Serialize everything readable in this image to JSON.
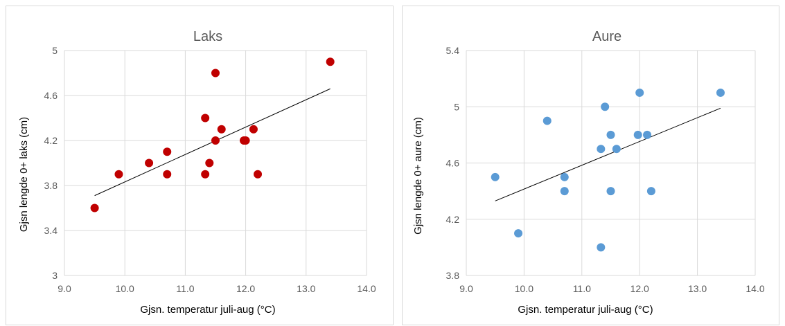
{
  "chart_data": [
    {
      "type": "scatter",
      "title": "Laks",
      "xlabel": "Gjsn. temperatur juli-aug (°C)",
      "ylabel": "Gjsn lengde 0+ laks (cm)",
      "xlim": [
        9.0,
        14.0
      ],
      "ylim": [
        3.0,
        5.0
      ],
      "x_ticks": [
        "9.0",
        "10.0",
        "11.0",
        "12.0",
        "13.0",
        "14.0"
      ],
      "y_ticks": [
        "3",
        "3.4",
        "3.8",
        "4.2",
        "4.6",
        "5"
      ],
      "marker_color": "#c00000",
      "grid": true,
      "legend": "none",
      "series": [
        {
          "x": [
            9.5,
            9.9,
            10.4,
            10.7,
            10.7,
            11.33,
            11.33,
            11.4,
            11.5,
            11.5,
            11.6,
            11.97,
            12.0,
            12.13,
            12.2,
            13.4
          ],
          "y": [
            3.6,
            3.9,
            4.0,
            4.1,
            3.9,
            4.4,
            3.9,
            4.0,
            4.8,
            4.2,
            4.3,
            4.2,
            4.2,
            4.3,
            3.9,
            4.9
          ]
        }
      ],
      "trendline": {
        "x": [
          9.5,
          13.4
        ],
        "y": [
          3.71,
          4.66
        ]
      }
    },
    {
      "type": "scatter",
      "title": "Aure",
      "xlabel": "Gjsn. temperatur juli-aug (°C)",
      "ylabel": "Gjsn lengde 0+ aure (cm)",
      "xlim": [
        9.0,
        14.0
      ],
      "ylim": [
        3.8,
        5.4
      ],
      "x_ticks": [
        "9.0",
        "10.0",
        "11.0",
        "12.0",
        "13.0",
        "14.0"
      ],
      "y_ticks": [
        "3.8",
        "4.2",
        "4.6",
        "5",
        "5.4"
      ],
      "marker_color": "#5b9bd5",
      "grid": true,
      "legend": "none",
      "series": [
        {
          "x": [
            9.5,
            9.9,
            10.4,
            10.7,
            10.7,
            11.33,
            11.33,
            11.4,
            11.5,
            11.5,
            11.6,
            11.97,
            12.0,
            12.13,
            12.2,
            13.4
          ],
          "y": [
            4.5,
            4.1,
            4.9,
            4.5,
            4.4,
            4.7,
            4.0,
            5.0,
            4.8,
            4.4,
            4.7,
            4.8,
            5.1,
            4.8,
            4.4,
            5.1
          ]
        }
      ],
      "trendline": {
        "x": [
          9.5,
          13.4
        ],
        "y": [
          4.33,
          4.99
        ]
      }
    }
  ]
}
